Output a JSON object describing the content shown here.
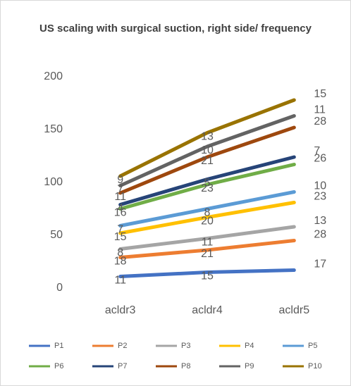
{
  "chart_data": {
    "type": "line",
    "stacked": true,
    "title": "US scaling with surgical suction, right side/ frequency",
    "categories": [
      "acldr3",
      "acldr4",
      "acldr5"
    ],
    "ylim": [
      0,
      200
    ],
    "yticks": [
      0,
      50,
      100,
      150,
      200
    ],
    "grid": false,
    "legend": "bottom",
    "series": [
      {
        "name": "P1",
        "color": "#4472c4",
        "values": [
          11,
          15,
          17
        ]
      },
      {
        "name": "P2",
        "color": "#ed7d31",
        "values": [
          18,
          21,
          28
        ]
      },
      {
        "name": "P3",
        "color": "#a5a5a5",
        "values": [
          8,
          11,
          13
        ]
      },
      {
        "name": "P4",
        "color": "#ffc000",
        "values": [
          15,
          20,
          23
        ]
      },
      {
        "name": "P5",
        "color": "#5b9bd5",
        "values": [
          7,
          8,
          10
        ]
      },
      {
        "name": "P6",
        "color": "#70ad47",
        "values": [
          16,
          23,
          26
        ]
      },
      {
        "name": "P7",
        "color": "#264478",
        "values": [
          4,
          5,
          7
        ]
      },
      {
        "name": "P8",
        "color": "#9e480e",
        "values": [
          11,
          21,
          28
        ]
      },
      {
        "name": "P9",
        "color": "#636363",
        "values": [
          7,
          10,
          11
        ]
      },
      {
        "name": "P10",
        "color": "#997300",
        "values": [
          9,
          13,
          15
        ]
      }
    ]
  }
}
